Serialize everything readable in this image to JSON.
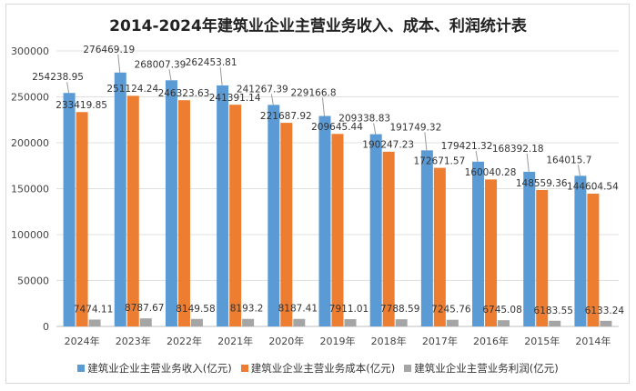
{
  "chart_data": {
    "type": "bar",
    "title": "2014-2024年建筑业企业主营业务收入、成本、利润统计表",
    "categories": [
      "2024年",
      "2023年",
      "2022年",
      "2021年",
      "2020年",
      "2019年",
      "2018年",
      "2017年",
      "2016年",
      "2015年",
      "2014年"
    ],
    "series": [
      {
        "name": "建筑业企业主营业务收入(亿元)",
        "color": "#5b9bd5",
        "values": [
          254238.95,
          276469.19,
          268007.39,
          262453.81,
          241267.39,
          229166.8,
          209338.83,
          191749.32,
          179421.32,
          168392.18,
          164015.7
        ]
      },
      {
        "name": "建筑业企业主营业务成本(亿元)",
        "color": "#ed7d31",
        "values": [
          233419.85,
          251124.24,
          246323.63,
          241391.14,
          221687.92,
          209645.44,
          190247.23,
          172671.57,
          160040.28,
          148559.36,
          144604.54
        ]
      },
      {
        "name": "建筑业企业主营业务利润(亿元)",
        "color": "#a5a5a5",
        "values": [
          7474.11,
          8787.67,
          8149.58,
          8193.2,
          8187.41,
          7911.01,
          7788.59,
          7245.76,
          6745.08,
          6183.55,
          6133.24
        ]
      }
    ],
    "ylim": [
      0,
      300000
    ],
    "yticks": [
      0,
      50000,
      100000,
      150000,
      200000,
      250000,
      300000
    ],
    "grid": true,
    "legend": "bottom"
  }
}
